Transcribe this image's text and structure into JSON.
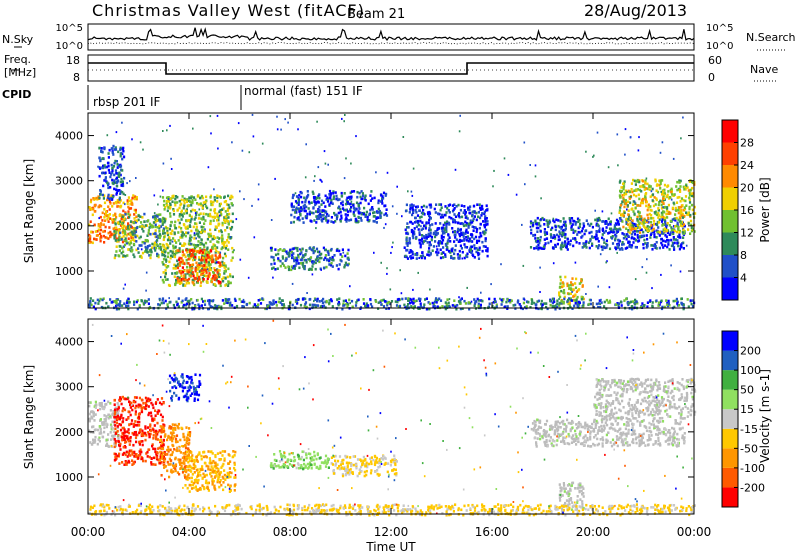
{
  "header": {
    "station": "Christmas Valley West (fitACF)",
    "beam": "Beam 21",
    "date": "28/Aug/2013"
  },
  "small_panels": {
    "nsky_label": "N.Sky",
    "nsky_ticks": [
      "10^5",
      "10^0"
    ],
    "nsearch_label": "N.Search",
    "nsearch_ticks": [
      "10^5",
      "10^0"
    ],
    "freq_label_line1": "Freq.",
    "freq_label_line2": "[MHz]",
    "freq_ticks": [
      "18",
      "8"
    ],
    "nave_label": "Nave",
    "nave_ticks": [
      "60",
      "0"
    ],
    "cpid_label": "CPID",
    "cpid_modes": [
      "rbsp 201 IF",
      "normal (fast) 151 IF"
    ]
  },
  "colors": {
    "power": [
      "#0000ff",
      "#2050c8",
      "#2e8a5a",
      "#70c030",
      "#f0d000",
      "#ff8a00",
      "#ff4000",
      "#ff0000"
    ],
    "velocity": [
      "#ff0000",
      "#ff5a00",
      "#ff9600",
      "#ffc800",
      "#c8c8c8",
      "#90e060",
      "#40b040",
      "#2060c0",
      "#0000ff"
    ],
    "ground_velocity_grey": "#bcbcbc"
  },
  "chart_data": [
    {
      "type": "heatmap",
      "name": "power",
      "xlabel": "",
      "ylabel": "Slant Range [km]",
      "xlim": [
        0,
        24
      ],
      "ylim": [
        180,
        4500
      ],
      "yticks": [
        "4000",
        "3000",
        "2000",
        "1000"
      ],
      "colorbar_label": "Power [dB]",
      "colorbar_ticks": [
        "28",
        "24",
        "20",
        "16",
        "12",
        "8",
        "4"
      ],
      "clim": [
        0,
        32
      ],
      "echo_regions": [
        {
          "t": [
            0.0,
            1.9
          ],
          "r": [
            1650,
            2700
          ],
          "level": 22
        },
        {
          "t": [
            0.4,
            1.4
          ],
          "r": [
            2600,
            3800
          ],
          "level": 6
        },
        {
          "t": [
            1.0,
            3.0
          ],
          "r": [
            1300,
            2300
          ],
          "level": 12
        },
        {
          "t": [
            2.9,
            5.7
          ],
          "r": [
            700,
            2700
          ],
          "level": 14
        },
        {
          "t": [
            3.5,
            5.2
          ],
          "r": [
            750,
            1500
          ],
          "level": 24
        },
        {
          "t": [
            7.2,
            10.3
          ],
          "r": [
            1050,
            1550
          ],
          "level": 8
        },
        {
          "t": [
            8.0,
            11.8
          ],
          "r": [
            2100,
            2800
          ],
          "level": 5
        },
        {
          "t": [
            12.5,
            15.8
          ],
          "r": [
            1300,
            2500
          ],
          "level": 4
        },
        {
          "t": [
            17.5,
            23.6
          ],
          "r": [
            1500,
            2200
          ],
          "level": 5
        },
        {
          "t": [
            21.0,
            24.0
          ],
          "r": [
            1850,
            3050
          ],
          "level": 16
        },
        {
          "t": [
            18.6,
            19.6
          ],
          "r": [
            300,
            900
          ],
          "level": 18
        },
        {
          "t": [
            0.0,
            24.0
          ],
          "r": [
            180,
            420
          ],
          "level": 8
        }
      ]
    },
    {
      "type": "heatmap",
      "name": "velocity",
      "xlabel": "Time UT",
      "ylabel": "Slant Range [km]",
      "xlim": [
        0,
        24
      ],
      "ylim": [
        180,
        4500
      ],
      "xticks": [
        "00:00",
        "04:00",
        "08:00",
        "12:00",
        "16:00",
        "20:00",
        "00:00"
      ],
      "yticks": [
        "4000",
        "3000",
        "2000",
        "1000"
      ],
      "colorbar_label": "Velocity [m s-1]",
      "colorbar_ticks": [
        "200",
        "100",
        "50",
        "15",
        "-15",
        "-50",
        "-100",
        "-200"
      ],
      "clim": [
        -250,
        250
      ],
      "echo_regions": [
        {
          "t": [
            0.0,
            1.2
          ],
          "r": [
            1700,
            2700
          ],
          "vel": 0,
          "ground": true
        },
        {
          "t": [
            1.0,
            3.0
          ],
          "r": [
            1300,
            2800
          ],
          "vel": -200
        },
        {
          "t": [
            2.8,
            4.0
          ],
          "r": [
            1000,
            2200
          ],
          "vel": -120
        },
        {
          "t": [
            3.2,
            4.4
          ],
          "r": [
            2700,
            3300
          ],
          "vel": 200
        },
        {
          "t": [
            3.8,
            5.8
          ],
          "r": [
            700,
            1600
          ],
          "vel": -70
        },
        {
          "t": [
            7.2,
            9.5
          ],
          "r": [
            1200,
            1600
          ],
          "vel": 60
        },
        {
          "t": [
            9.6,
            12.2
          ],
          "r": [
            1050,
            1500
          ],
          "vel": -30
        },
        {
          "t": [
            17.5,
            23.6
          ],
          "r": [
            1700,
            2300
          ],
          "vel": 0,
          "ground": true
        },
        {
          "t": [
            20.0,
            24.0
          ],
          "r": [
            2300,
            3200
          ],
          "vel": 0,
          "ground": true
        },
        {
          "t": [
            18.6,
            19.6
          ],
          "r": [
            300,
            900
          ],
          "vel": 0,
          "ground": true
        },
        {
          "t": [
            0.0,
            24.0
          ],
          "r": [
            180,
            420
          ],
          "vel": -40
        }
      ]
    }
  ]
}
